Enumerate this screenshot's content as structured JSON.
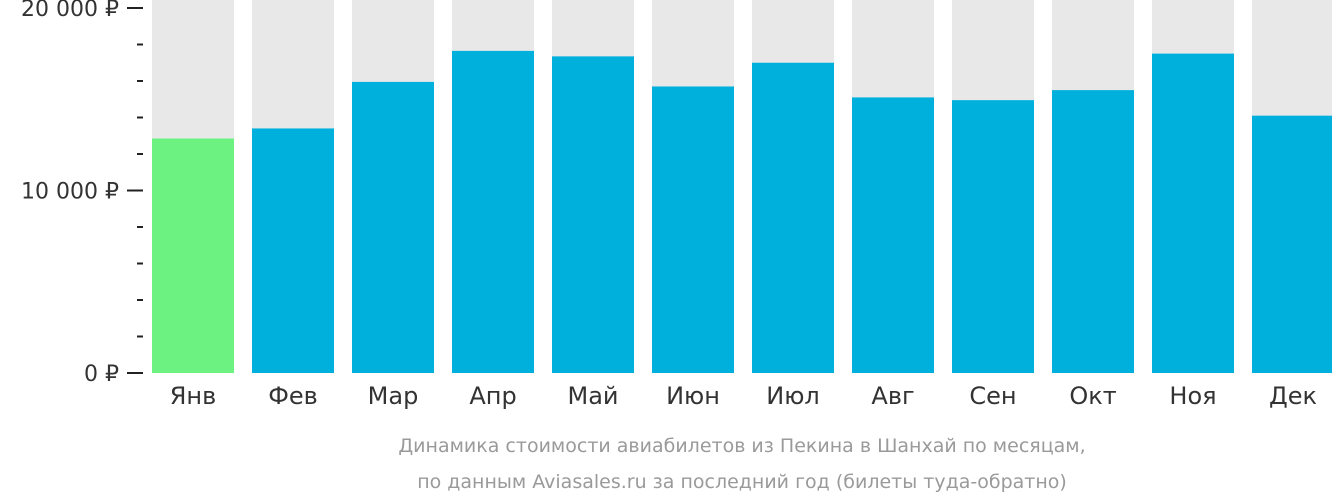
{
  "chart_data": {
    "type": "bar",
    "categories": [
      "Янв",
      "Фев",
      "Мар",
      "Апр",
      "Май",
      "Июн",
      "Июл",
      "Авг",
      "Сен",
      "Окт",
      "Ноя",
      "Дек"
    ],
    "values": [
      12850,
      13400,
      15950,
      17650,
      17350,
      15700,
      17000,
      15100,
      14950,
      15500,
      17500,
      14100
    ],
    "ylim": [
      0,
      20000
    ],
    "yticks": [
      {
        "value": 0,
        "label": "0 ₽"
      },
      {
        "value": 10000,
        "label": "10 000 ₽"
      },
      {
        "value": 20000,
        "label": "20 000 ₽"
      }
    ],
    "minor_tick_step": 2000,
    "highlight_index": 0,
    "caption": [
      "Динамика стоимости авиабилетов из Пекина в Шанхай по месяцам,",
      "по данным Aviasales.ru за последний год (билеты туда-обратно)"
    ],
    "colors": {
      "bar": "#00b0dc",
      "highlight": "#6cf281",
      "background_bar": "#e8e8e8"
    },
    "grid": false,
    "legend": "none"
  }
}
